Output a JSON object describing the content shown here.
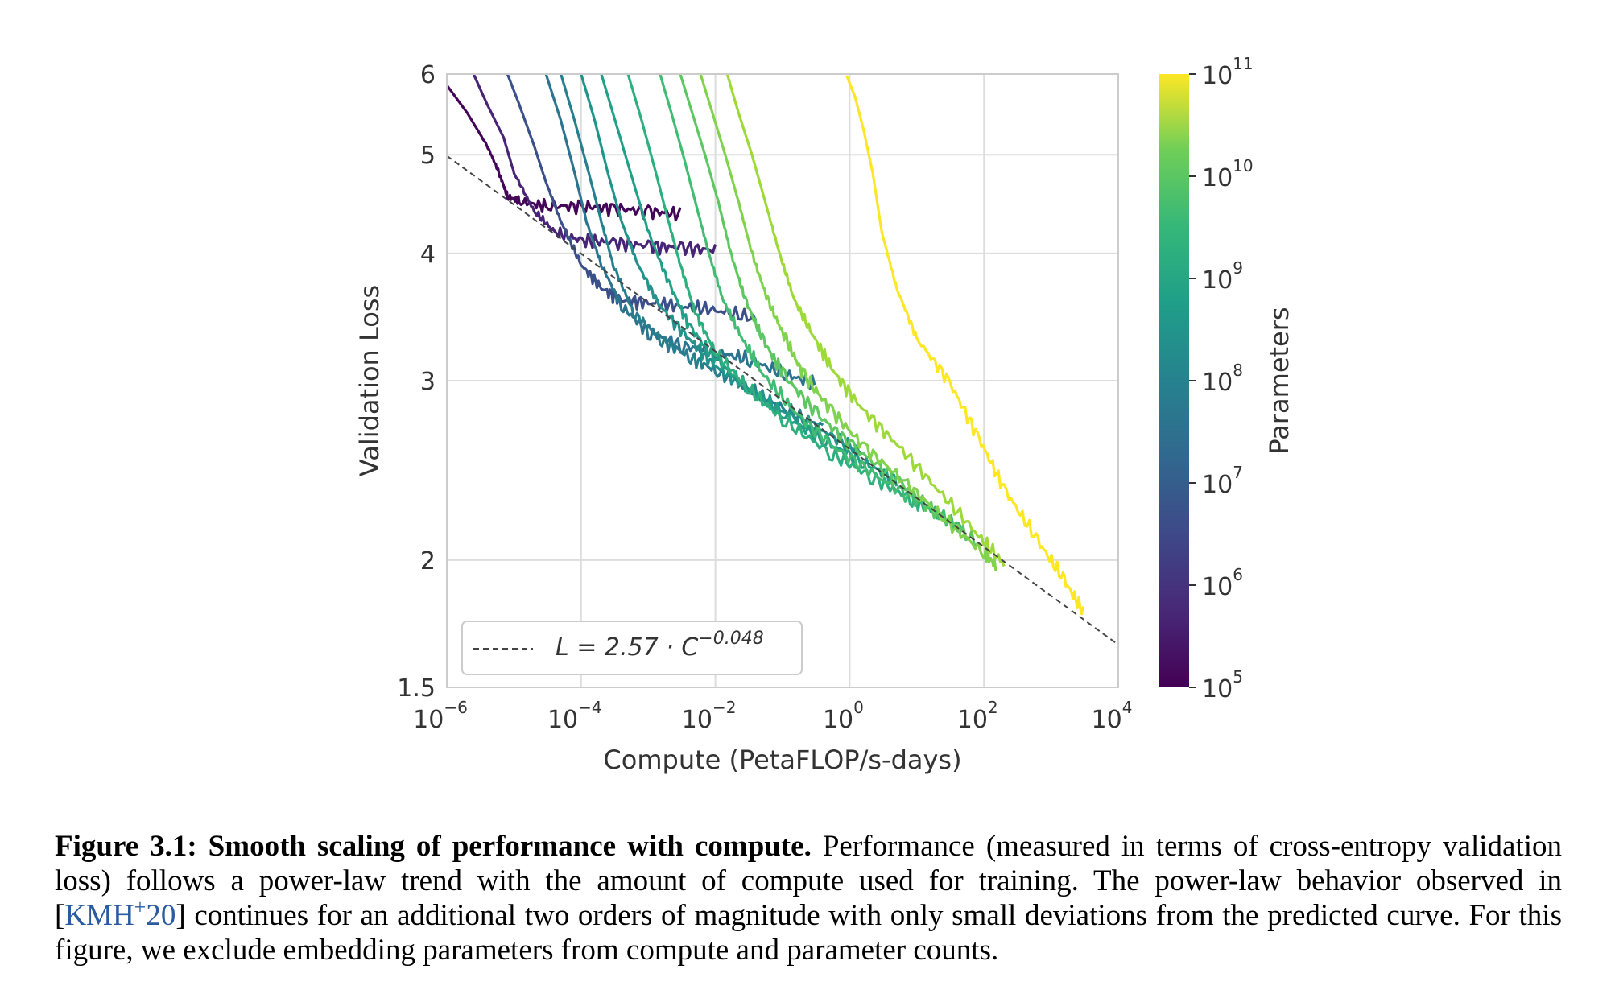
{
  "chart_data": {
    "type": "line",
    "title": "",
    "xlabel": "Compute (PetaFLOP/s-days)",
    "ylabel": "Validation Loss",
    "x_scale": "log",
    "y_scale": "log",
    "xlim": [
      1e-06,
      10000.0
    ],
    "ylim": [
      1.5,
      6
    ],
    "x_ticks": [
      {
        "base": "10",
        "exp": "−6"
      },
      {
        "base": "10",
        "exp": "−4"
      },
      {
        "base": "10",
        "exp": "−2"
      },
      {
        "base": "10",
        "exp": "0"
      },
      {
        "base": "10",
        "exp": "2"
      },
      {
        "base": "10",
        "exp": "4"
      }
    ],
    "y_ticks": [
      "6",
      "5",
      "4",
      "3",
      "2",
      "1.5"
    ],
    "grid": true,
    "legend": {
      "placement": "bottom-left",
      "entry": {
        "text": "L = 2.57 · C",
        "exponent": "−0.048",
        "style": "dashed",
        "color": "#444444"
      }
    },
    "fit_line": {
      "a": 2.57,
      "b": -0.048
    },
    "colorbar": {
      "label": "Parameters",
      "scale": "log",
      "range": [
        100000.0,
        100000000000.0
      ],
      "colormap": "viridis",
      "ticks": [
        {
          "base": "10",
          "exp": "11"
        },
        {
          "base": "10",
          "exp": "10"
        },
        {
          "base": "10",
          "exp": "9"
        },
        {
          "base": "10",
          "exp": "8"
        },
        {
          "base": "10",
          "exp": "7"
        },
        {
          "base": "10",
          "exp": "6"
        },
        {
          "base": "10",
          "exp": "5"
        }
      ]
    },
    "series_shape": {
      "noise_after_compute_factor": 3,
      "noise_amplitude": 0.018
    },
    "series": [
      {
        "params": 120000.0,
        "x": [
          1e-06,
          2e-06,
          4e-06,
          6e-06,
          8e-06,
          1.2e-05,
          3e-05,
          0.0001,
          0.0003,
          0.001,
          0.003
        ],
        "y": [
          5.85,
          5.5,
          5.1,
          4.8,
          4.55,
          4.5,
          4.45,
          4.45,
          4.43,
          4.4,
          4.37
        ]
      },
      {
        "params": 400000.0,
        "x": [
          2.5e-06,
          4e-06,
          7e-06,
          1e-05,
          2e-05,
          4e-05,
          0.0001,
          0.0003,
          0.001,
          0.003,
          0.01
        ],
        "y": [
          6.0,
          5.6,
          5.2,
          4.8,
          4.4,
          4.2,
          4.12,
          4.1,
          4.07,
          4.05,
          4.03
        ]
      },
      {
        "params": 3000000.0,
        "x": [
          8e-06,
          1.2e-05,
          2e-05,
          3e-05,
          5e-05,
          0.0001,
          0.0002,
          0.0004,
          0.001,
          0.003,
          0.01,
          0.04
        ],
        "y": [
          6.0,
          5.6,
          5.1,
          4.7,
          4.3,
          3.9,
          3.7,
          3.6,
          3.58,
          3.55,
          3.52,
          3.45
        ]
      },
      {
        "params": 20000000.0,
        "x": [
          3e-05,
          5e-05,
          8e-05,
          0.00012,
          0.0002,
          0.0004,
          0.001,
          0.003,
          0.01,
          0.03,
          0.1,
          0.3
        ],
        "y": [
          6.0,
          5.4,
          4.8,
          4.3,
          3.9,
          3.55,
          3.35,
          3.25,
          3.2,
          3.15,
          3.05,
          2.98
        ]
      },
      {
        "params": 40000000.0,
        "x": [
          5e-05,
          8e-05,
          0.00013,
          0.0002,
          0.0003,
          0.0006,
          0.0015,
          0.004,
          0.01,
          0.03,
          0.1,
          0.4
        ],
        "y": [
          6.0,
          5.4,
          4.8,
          4.3,
          3.9,
          3.5,
          3.3,
          3.17,
          3.07,
          2.95,
          2.82,
          2.7
        ]
      },
      {
        "params": 120000000.0,
        "x": [
          0.0001,
          0.00016,
          0.00025,
          0.0004,
          0.0007,
          0.0015,
          0.004,
          0.01,
          0.03,
          0.1,
          0.4,
          1.5
        ],
        "y": [
          6.0,
          5.4,
          4.8,
          4.3,
          3.9,
          3.55,
          3.3,
          3.1,
          2.95,
          2.8,
          2.68,
          2.55
        ]
      },
      {
        "params": 250000000.0,
        "x": [
          0.0002,
          0.00035,
          0.0006,
          0.001,
          0.002,
          0.004,
          0.01,
          0.03,
          0.1,
          0.4,
          1.5,
          5
        ],
        "y": [
          6.0,
          5.3,
          4.7,
          4.2,
          3.75,
          3.4,
          3.15,
          2.95,
          2.78,
          2.62,
          2.5,
          2.4
        ]
      },
      {
        "params": 600000000.0,
        "x": [
          0.0005,
          0.0008,
          0.0013,
          0.002,
          0.003,
          0.005,
          0.01,
          0.03,
          0.1,
          0.5,
          2,
          8,
          20
        ],
        "y": [
          6.0,
          5.4,
          4.8,
          4.3,
          3.9,
          3.5,
          3.2,
          2.95,
          2.75,
          2.55,
          2.42,
          2.3,
          2.22
        ]
      },
      {
        "params": 1400000000.0,
        "x": [
          0.0015,
          0.0022,
          0.0033,
          0.005,
          0.008,
          0.013,
          0.025,
          0.05,
          0.15,
          0.6,
          3,
          15,
          50
        ],
        "y": [
          6.0,
          5.5,
          5.0,
          4.5,
          4.0,
          3.6,
          3.3,
          3.05,
          2.8,
          2.58,
          2.4,
          2.25,
          2.15
        ]
      },
      {
        "params": 3000000000.0,
        "x": [
          0.003,
          0.0045,
          0.007,
          0.011,
          0.017,
          0.028,
          0.05,
          0.1,
          0.3,
          1,
          5,
          20,
          80
        ],
        "y": [
          6.0,
          5.5,
          5.0,
          4.5,
          4.0,
          3.6,
          3.3,
          3.05,
          2.8,
          2.6,
          2.4,
          2.22,
          2.08
        ]
      },
      {
        "params": 7000000000.0,
        "x": [
          0.006,
          0.009,
          0.014,
          0.022,
          0.035,
          0.06,
          0.11,
          0.2,
          0.5,
          1.5,
          6,
          25,
          100,
          150
        ],
        "y": [
          6.0,
          5.5,
          5.0,
          4.5,
          4.0,
          3.6,
          3.3,
          3.05,
          2.82,
          2.6,
          2.4,
          2.2,
          2.03,
          1.98
        ]
      },
      {
        "params": 13000000000.0,
        "x": [
          0.015,
          0.022,
          0.035,
          0.055,
          0.09,
          0.15,
          0.3,
          0.6,
          1.5,
          5,
          20,
          80,
          200
        ],
        "y": [
          6.0,
          5.5,
          5.0,
          4.5,
          4.0,
          3.6,
          3.3,
          3.05,
          2.82,
          2.6,
          2.35,
          2.12,
          1.98
        ]
      },
      {
        "params": 175000000000.0,
        "x": [
          0.9,
          1.2,
          1.6,
          2.2,
          3,
          5,
          10,
          30,
          80,
          200,
          600,
          1500,
          3000
        ],
        "y": [
          5.98,
          5.7,
          5.3,
          4.8,
          4.2,
          3.7,
          3.3,
          3.0,
          2.65,
          2.35,
          2.1,
          1.92,
          1.78
        ]
      }
    ]
  },
  "caption": {
    "label": "Figure 3.1:",
    "title": "Smooth scaling of performance with compute.",
    "text_1": "Performance (measured in terms of cross-entropy validation loss) follows a power-law trend with the amount of compute used for training. The power-law behavior observed in [",
    "cite_base": "KMH",
    "cite_sup": "+",
    "cite_year": "20",
    "text_2": "] continues for an additional two orders of magnitude with only small deviations from the predicted curve. For this figure, we exclude embedding parameters from compute and parameter counts."
  }
}
